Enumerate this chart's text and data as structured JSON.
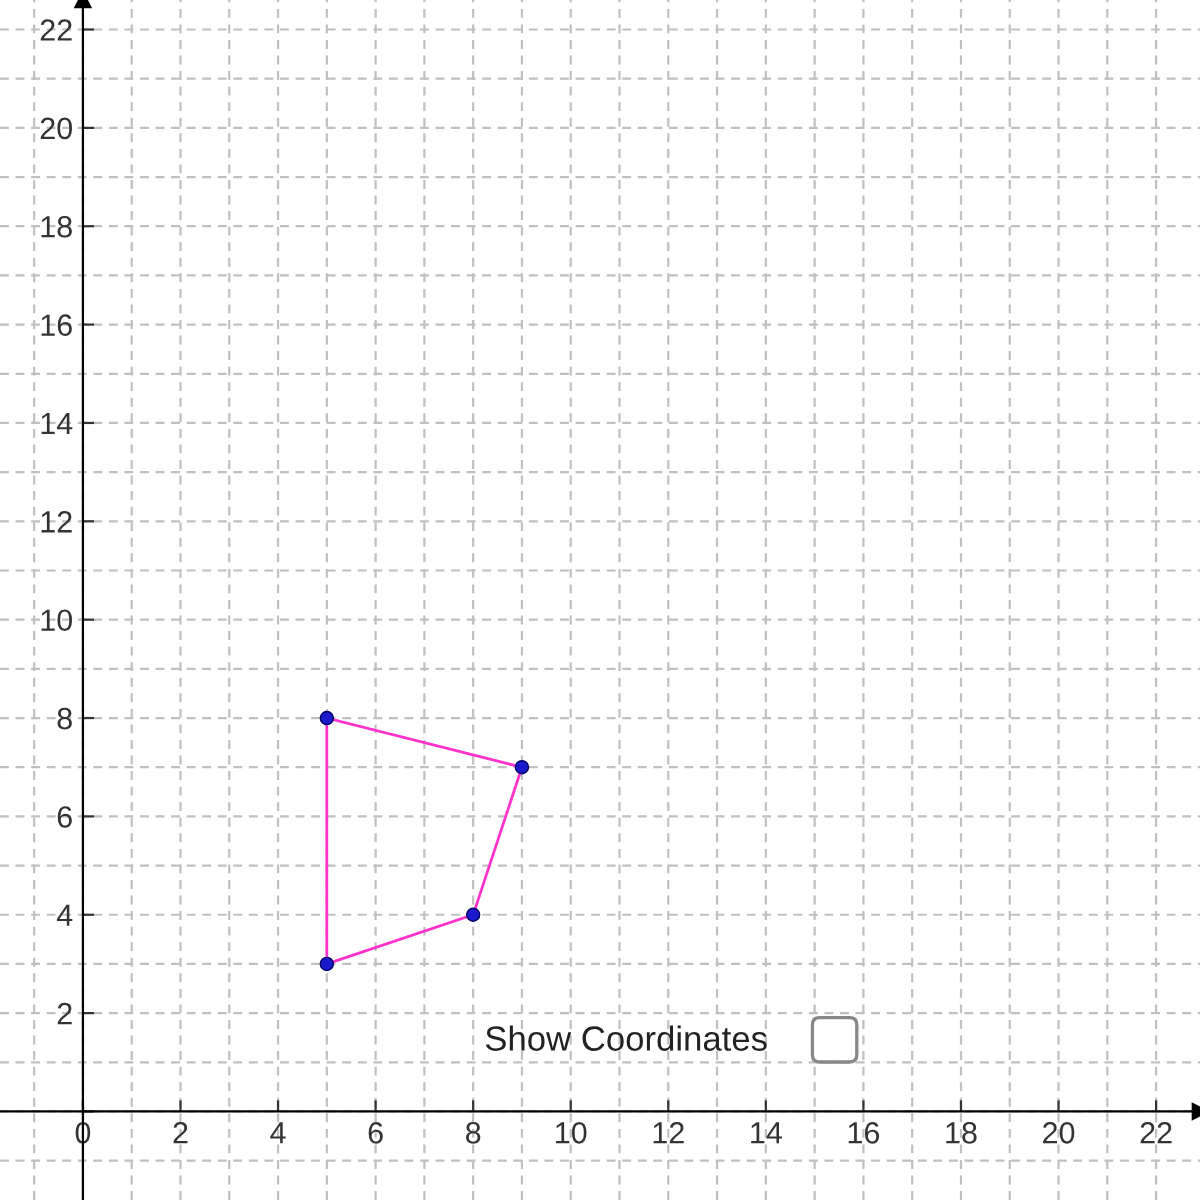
{
  "chart_data": {
    "type": "line",
    "xlim": [
      -1.7,
      22.9
    ],
    "ylim": [
      -1.8,
      22.6
    ],
    "xticks": [
      0,
      2,
      4,
      6,
      8,
      10,
      12,
      14,
      16,
      18,
      20,
      22
    ],
    "yticks": [
      {
        "value": 0,
        "label": null
      },
      2,
      4,
      6,
      8,
      10,
      12,
      14,
      16,
      18,
      20,
      22
    ],
    "grid": true,
    "line_style": "solid",
    "series": [
      {
        "color": "#ff33cc",
        "marker": "none",
        "x": [
          5,
          9
        ],
        "values": [
          8,
          7
        ]
      },
      {
        "color": "#ff33cc",
        "marker": "none",
        "x": [
          9,
          8
        ],
        "values": [
          7,
          4
        ]
      },
      {
        "color": "#ff33cc",
        "marker": "none",
        "x": [
          8,
          5
        ],
        "values": [
          4,
          3
        ]
      },
      {
        "color": "#ff33cc",
        "marker": "none",
        "x": [
          5,
          5
        ],
        "values": [
          3,
          8
        ]
      },
      {
        "type": "scatter",
        "color": "#1a1acc",
        "marker": "circle",
        "x": [
          5,
          9,
          8,
          5
        ],
        "values": [
          8,
          7,
          4,
          3
        ]
      }
    ],
    "annotations": [
      "Show Coordinates"
    ]
  }
}
